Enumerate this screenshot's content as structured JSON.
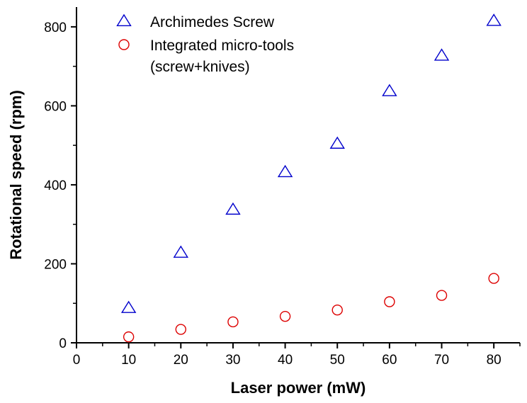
{
  "chart_data": {
    "type": "scatter",
    "title": "",
    "xlabel": "Laser power (mW)",
    "ylabel": "Rotational speed (rpm)",
    "xlim": [
      0,
      85
    ],
    "ylim": [
      0,
      850
    ],
    "x_ticks": [
      0,
      10,
      20,
      30,
      40,
      50,
      60,
      70,
      80
    ],
    "y_ticks": [
      0,
      200,
      400,
      600,
      800
    ],
    "grid": false,
    "legend_position": "top-left",
    "series": [
      {
        "name": "Archimedes Screw",
        "marker": "triangle-open",
        "color": "#0000cc",
        "x": [
          10,
          20,
          30,
          40,
          50,
          60,
          70,
          80
        ],
        "y": [
          88,
          228,
          337,
          432,
          504,
          637,
          727,
          815
        ]
      },
      {
        "name": "Integrated micro-tools (screw+knives)",
        "legend_lines": [
          "Integrated micro-tools",
          "(screw+knives)"
        ],
        "marker": "circle-open",
        "color": "#dd0000",
        "x": [
          10,
          20,
          30,
          40,
          50,
          60,
          70,
          80
        ],
        "y": [
          15,
          34,
          53,
          67,
          83,
          104,
          120,
          163
        ]
      }
    ]
  }
}
